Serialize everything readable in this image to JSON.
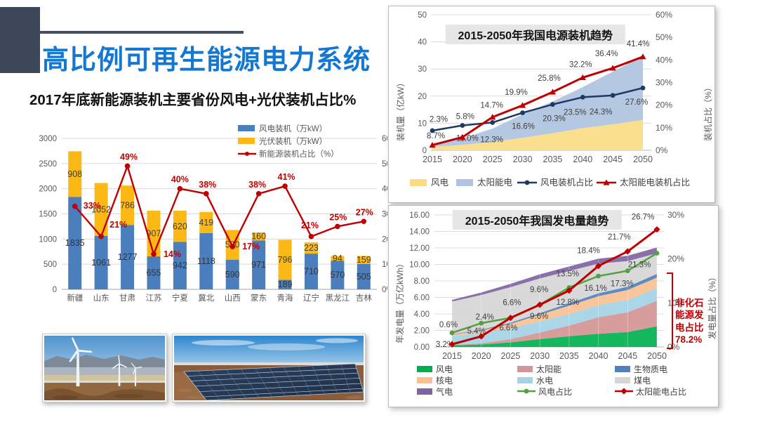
{
  "slide": {
    "title": "高比例可再生能源电力系统",
    "subtitle": "2017年底新能源装机主要省份风电+光伏装机占比%"
  },
  "colors": {
    "title_blue": "#1478d3",
    "accent_red": "#c00000",
    "bar_blue": "#4a7ebc",
    "bar_yellow": "#fcb814"
  },
  "chart_data": [
    {
      "id": "province_mix",
      "type": "bar",
      "title": "",
      "categories": [
        "新疆",
        "山东",
        "甘肃",
        "江苏",
        "宁夏",
        "冀北",
        "山西",
        "蒙东",
        "青海",
        "辽宁",
        "黑龙江",
        "吉林"
      ],
      "series": [
        {
          "name": "风电装机（万kW）",
          "color": "#4a7ebc",
          "values": [
            1835,
            1061,
            1277,
            655,
            942,
            1118,
            590,
            971,
            189,
            710,
            570,
            505
          ]
        },
        {
          "name": "光伏装机（万kW）",
          "color": "#fcb814",
          "values": [
            908,
            1052,
            786,
            907,
            620,
            419,
            590,
            160,
            796,
            223,
            94,
            159
          ]
        }
      ],
      "line": {
        "name": "新能源装机占比（%）",
        "color": "#c00000",
        "values": [
          33,
          21,
          49,
          14,
          40,
          38,
          17,
          38,
          41,
          21,
          25,
          27
        ],
        "labels": [
          "33%",
          "21%",
          "49%",
          "14%",
          "40%",
          "38%",
          "17%",
          "38%",
          "41%",
          "21%",
          "25%",
          "27%"
        ]
      },
      "ylim_left": [
        0,
        3000
      ],
      "ylim_right": [
        0,
        60
      ],
      "yticks_left": [
        "3000",
        "2500",
        "2000",
        "1500",
        "1000",
        "500",
        "0"
      ],
      "yticks_right": [
        "60%",
        "50%",
        "40%",
        "30%",
        "20%",
        "10%",
        "0%"
      ],
      "grid": true,
      "legend_position": "top-right"
    },
    {
      "id": "capacity_trend",
      "type": "area",
      "title": "2015-2050年我国电源装机趋势",
      "x": [
        "2015",
        "2020",
        "2025",
        "2030",
        "2035",
        "2040",
        "2045",
        "2050"
      ],
      "ylabel_left": "装机量（亿kW）",
      "ylabel_right": "装机占比（%）",
      "ylim_left": [
        0,
        50
      ],
      "ylim_right": [
        0,
        60
      ],
      "yticks_left": [
        "50",
        "40",
        "30",
        "20",
        "10",
        "0"
      ],
      "yticks_right": [
        "60%",
        "50%",
        "40%",
        "30%",
        "20%",
        "10%",
        "0%"
      ],
      "areas": [
        {
          "name": "风电",
          "color": "#f9dc84",
          "values": [
            1.3,
            2.0,
            3.1,
            4.6,
            6.3,
            8.2,
            9.6,
            11.2
          ]
        },
        {
          "name": "太阳能电",
          "color": "#aec3e0",
          "values": [
            0.5,
            2.4,
            4.9,
            8.7,
            11.7,
            15.1,
            19.4,
            23.6
          ]
        }
      ],
      "lines": [
        {
          "name": "风电装机占比",
          "color": "#1f3864",
          "marker": "circle",
          "values": [
            8.7,
            11.0,
            12.3,
            16.6,
            20.3,
            23.5,
            24.3,
            27.6
          ],
          "labels": [
            "8.7%",
            "11.0%",
            "12.3%",
            "16.6%",
            "20.3%",
            "23.5%",
            "24.3%",
            "27.6%"
          ]
        },
        {
          "name": "太阳能电装机占比",
          "color": "#c00000",
          "marker": "triangle",
          "values": [
            2.3,
            5.8,
            14.7,
            19.9,
            25.8,
            32.2,
            36.4,
            41.4
          ],
          "labels": [
            "2.3%",
            "5.8%",
            "14.7%",
            "19.9%",
            "25.8%",
            "32.2%",
            "36.4%",
            "41.4%"
          ]
        }
      ],
      "grid": true,
      "legend_position": "bottom"
    },
    {
      "id": "generation_trend",
      "type": "area",
      "title": "2015-2050年我国发电量趋势",
      "x": [
        "2015",
        "2020",
        "2025",
        "2030",
        "2035",
        "2040",
        "2045",
        "2050"
      ],
      "ylabel_left": "年发电量（万亿kWh）",
      "ylabel_right": "发电量占比（%）",
      "ylim_left": [
        0,
        16
      ],
      "ylim_right": [
        0,
        30
      ],
      "yticks_left": [
        "16.00",
        "14.00",
        "12.00",
        "10.00",
        "8.00",
        "6.00",
        "4.00",
        "2.00",
        "0.00"
      ],
      "yticks_right": [
        "30%",
        "20%",
        "10%",
        "0%"
      ],
      "areas": [
        {
          "name": "风电",
          "color": "#00b050",
          "values": [
            0.19,
            0.3,
            0.55,
            0.95,
            1.3,
            1.6,
            1.8,
            2.5
          ]
        },
        {
          "name": "太阳能",
          "color": "#d49594",
          "values": [
            0.04,
            0.15,
            0.4,
            0.8,
            1.3,
            2.0,
            2.4,
            3.1
          ]
        },
        {
          "name": "水电",
          "color": "#a3d3e6",
          "values": [
            1.1,
            1.25,
            1.3,
            1.35,
            1.4,
            1.45,
            1.5,
            1.55
          ]
        },
        {
          "name": "核电",
          "color": "#fac08f",
          "values": [
            0.17,
            0.3,
            0.55,
            0.8,
            1.0,
            1.1,
            1.2,
            1.25
          ]
        },
        {
          "name": "生物质电",
          "color": "#4f81bd",
          "values": [
            0.05,
            0.1,
            0.15,
            0.2,
            0.3,
            0.35,
            0.4,
            0.45
          ]
        },
        {
          "name": "煤电",
          "color": "#d6d6d6",
          "values": [
            3.95,
            4.2,
            4.3,
            4.2,
            3.9,
            3.6,
            3.1,
            2.5
          ]
        },
        {
          "name": "气电",
          "color": "#8064a2",
          "values": [
            0.2,
            0.3,
            0.4,
            0.5,
            0.55,
            0.6,
            0.65,
            0.7
          ]
        }
      ],
      "lines": [
        {
          "name": "风电占比",
          "color": "#55a043",
          "marker": "circle",
          "values": [
            3.2,
            5.4,
            6.6,
            9.6,
            13.5,
            16.1,
            17.3,
            21.3
          ],
          "labels": [
            "3.2%",
            "5.4%",
            "6.6%",
            "9.6%",
            "13.5%",
            "16.1%",
            "17.3%",
            "21.3%"
          ]
        },
        {
          "name": "太阳能电占比",
          "color": "#c00000",
          "marker": "diamond",
          "values": [
            0.6,
            2.4,
            6.6,
            9.6,
            12.8,
            18.4,
            21.7,
            26.7
          ],
          "labels": [
            "0.6%",
            "2.4%",
            "6.6%",
            "9.6%",
            "12.8%",
            "18.4%",
            "21.7%",
            "26.7%"
          ]
        }
      ],
      "legend_order": [
        "风电",
        "太阳能",
        "生物质电",
        "核电",
        "水电",
        "煤电",
        "气电",
        "风电占比",
        "太阳能电占比"
      ],
      "annotation": "非化石\n能源发\n电占比\n78.2%",
      "grid": true,
      "legend_position": "bottom-grid"
    }
  ]
}
